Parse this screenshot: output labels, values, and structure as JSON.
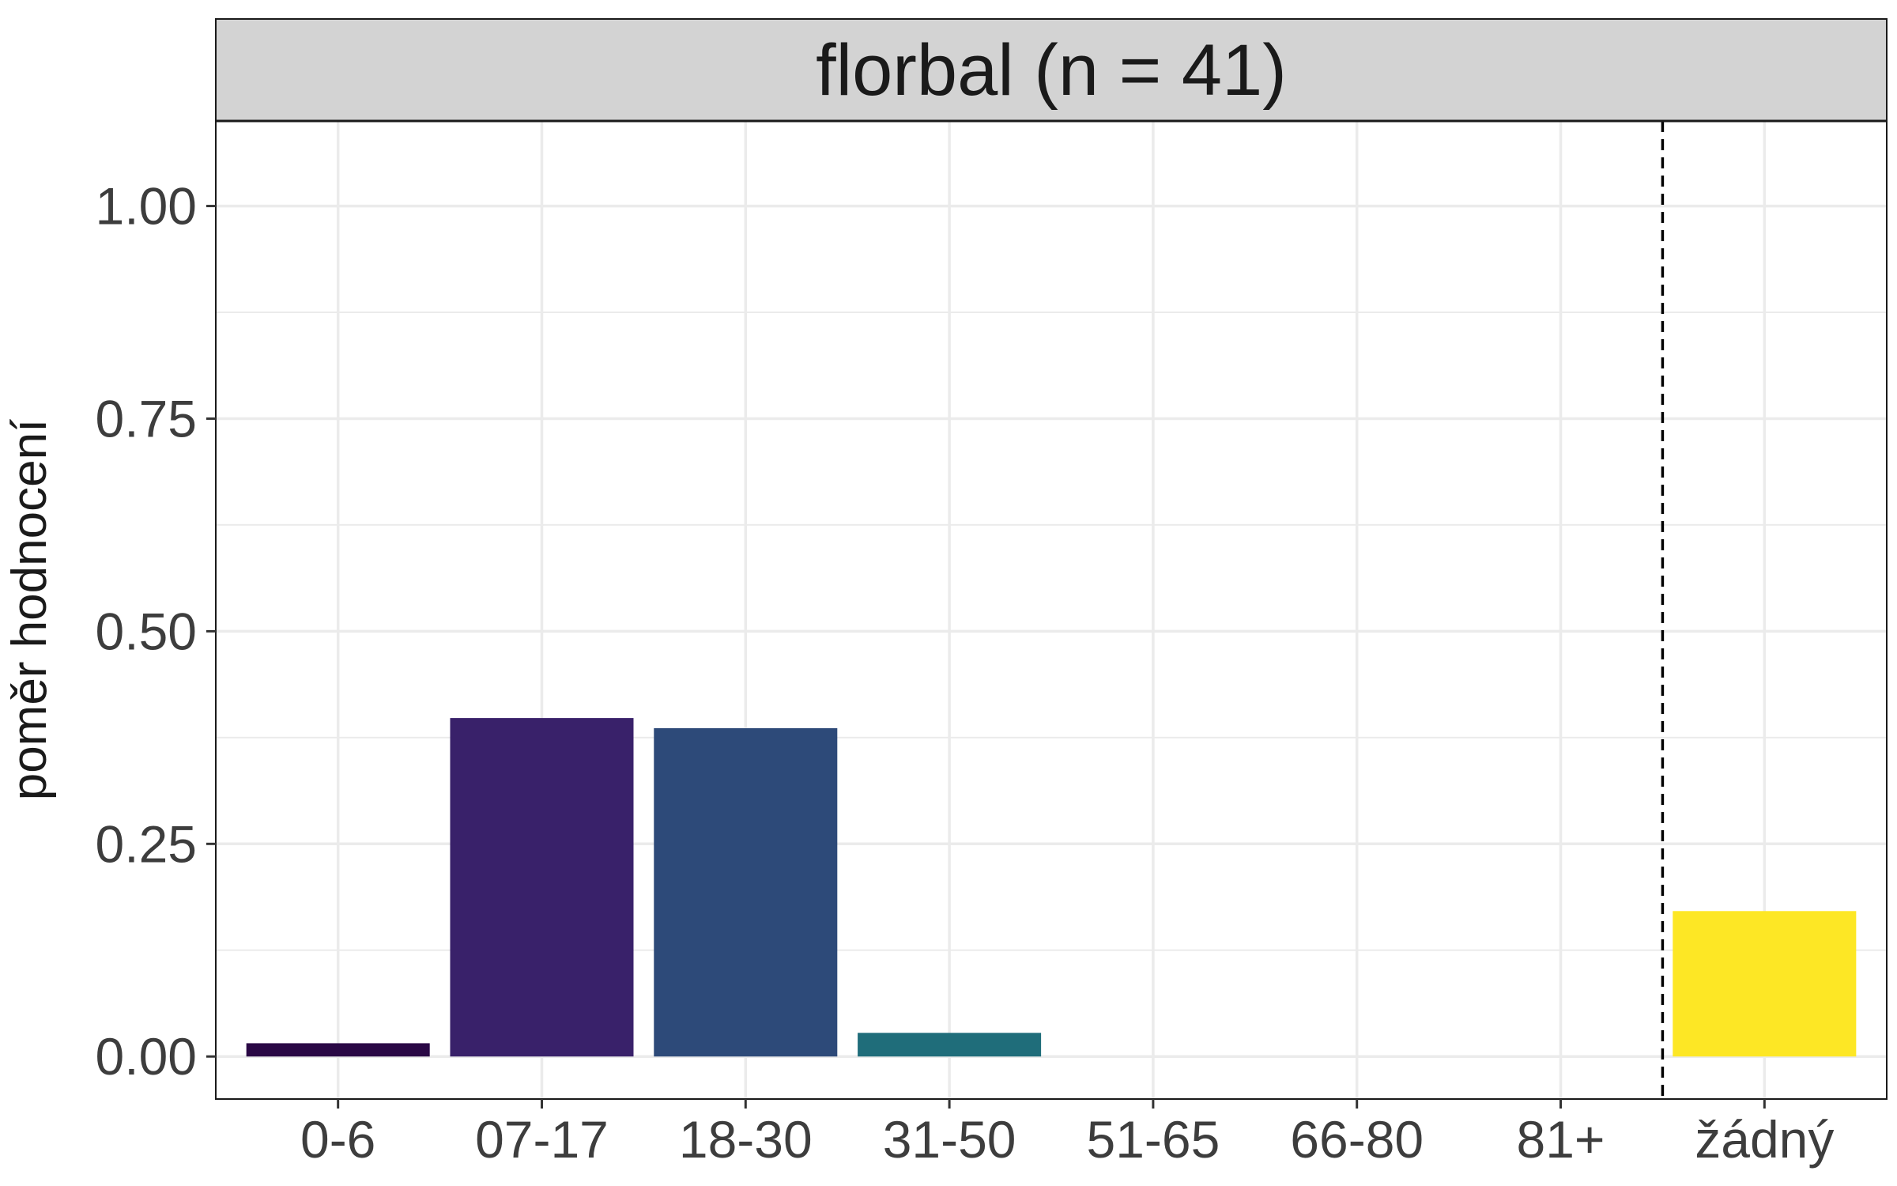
{
  "chart_data": {
    "type": "bar",
    "title": "florbal (n = 41)",
    "xlabel": "",
    "ylabel": "poměr hodnocení",
    "categories": [
      "0-6",
      "07-17",
      "18-30",
      "31-50",
      "51-65",
      "66-80",
      "81+",
      "žádný"
    ],
    "values": [
      0.0156,
      0.398,
      0.386,
      0.0278,
      0,
      0,
      0,
      0.171
    ],
    "bar_colors": [
      "#2a0845",
      "#39216a",
      "#2d4a79",
      "#1f6d7a",
      "#26828e",
      "#3bbb75",
      "#8fd744",
      "#fde725"
    ],
    "ylim": [
      -0.05,
      1.1
    ],
    "yticks": [
      0.0,
      0.25,
      0.5,
      0.75,
      1.0
    ],
    "ytick_labels": [
      "0.00",
      "0.25",
      "0.50",
      "0.75",
      "1.00"
    ],
    "grid": true,
    "separator_before": "žádný",
    "separator_style": "dashed",
    "facet_strip_color": "#d3d3d3",
    "grid_color": "#ebebeb"
  }
}
